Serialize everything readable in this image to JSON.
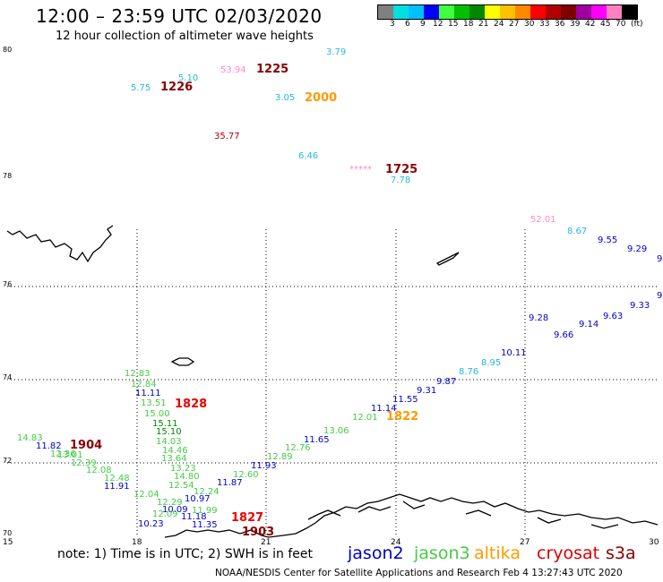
{
  "header": {
    "title": "12:00 – 23:59 UTC 02/03/2020",
    "subtitle": "12 hour collection of altimeter wave heights"
  },
  "colorbar": {
    "colors": [
      "#808080",
      "#00e0e0",
      "#00c0ff",
      "#0000ff",
      "#40ff40",
      "#00c000",
      "#008800",
      "#ffff00",
      "#ffc000",
      "#ff8800",
      "#ff0000",
      "#b00000",
      "#800000",
      "#a000a0",
      "#ff00ff",
      "#ff80c0",
      "#000000"
    ],
    "labels": [
      "3",
      "6",
      "9",
      "12",
      "15",
      "18",
      "21",
      "24",
      "27",
      "30",
      "33",
      "36",
      "39",
      "42",
      "45",
      "70",
      "(ft)"
    ]
  },
  "axes": {
    "y_ticks": [
      "80",
      "78",
      "76",
      "74",
      "72",
      "70"
    ],
    "x_ticks": [
      "15",
      "18",
      "21",
      "24",
      "27",
      "30"
    ]
  },
  "satellites": {
    "jason2": {
      "name": "jason2",
      "color": "#0000cc"
    },
    "jason3": {
      "name": "jason3",
      "color": "#44cc44"
    },
    "altika": {
      "name": "altika",
      "color": "#ff9900"
    },
    "cryosat": {
      "name": "cryosat",
      "color": "#dd0000"
    },
    "s3a": {
      "name": "s3a",
      "color": "#880000"
    }
  },
  "time_labels": [
    {
      "text": "1226",
      "color": "#880000"
    },
    {
      "text": "1225",
      "color": "#880000"
    },
    {
      "text": "2000",
      "color": "#ff9900"
    },
    {
      "text": "1725",
      "color": "#880000"
    },
    {
      "text": "1828",
      "color": "#ee0000"
    },
    {
      "text": "1904",
      "color": "#880000"
    },
    {
      "text": "1822",
      "color": "#ff9900"
    },
    {
      "text": "1827",
      "color": "#ee0000"
    },
    {
      "text": "1903",
      "color": "#880000"
    }
  ],
  "wave_labels": [
    {
      "text": "5.75",
      "color": "#22bbdd"
    },
    {
      "text": "5.10",
      "color": "#22bbdd"
    },
    {
      "text": "53.94",
      "color": "#ff88cc"
    },
    {
      "text": "3.79",
      "color": "#22bbdd"
    },
    {
      "text": "3.05",
      "color": "#22bbdd"
    },
    {
      "text": "35.77",
      "color": "#aa0000"
    },
    {
      "text": "6.46",
      "color": "#22bbdd"
    },
    {
      "text": "*****",
      "color": "#ff88cc"
    },
    {
      "text": "7.78",
      "color": "#22bbdd"
    },
    {
      "text": "52.01",
      "color": "#ff88cc"
    },
    {
      "text": "8.67",
      "color": "#22bbdd"
    },
    {
      "text": "9.55",
      "color": "#0000cc"
    },
    {
      "text": "9.29",
      "color": "#0000cc"
    },
    {
      "text": "9",
      "color": "#0000cc"
    },
    {
      "text": "9",
      "color": "#0000cc"
    },
    {
      "text": "9.33",
      "color": "#0000cc"
    },
    {
      "text": "9.63",
      "color": "#0000cc"
    },
    {
      "text": "9.66",
      "color": "#0000cc"
    },
    {
      "text": "9.14",
      "color": "#0000cc"
    },
    {
      "text": "9.28",
      "color": "#0000cc"
    },
    {
      "text": "10.11",
      "color": "#0000cc"
    },
    {
      "text": "8.95",
      "color": "#22bbdd"
    },
    {
      "text": "8.76",
      "color": "#22bbdd"
    },
    {
      "text": "9.87",
      "color": "#0000cc"
    },
    {
      "text": "9.31",
      "color": "#0000cc"
    },
    {
      "text": "11.55",
      "color": "#0000cc"
    },
    {
      "text": "11.14",
      "color": "#0000cc"
    },
    {
      "text": "12.01",
      "color": "#44cc44"
    },
    {
      "text": "13.06",
      "color": "#44cc44"
    },
    {
      "text": "11.65",
      "color": "#0000cc"
    },
    {
      "text": "12.76",
      "color": "#44cc44"
    },
    {
      "text": "12.89",
      "color": "#44cc44"
    },
    {
      "text": "11.93",
      "color": "#0000cc"
    },
    {
      "text": "12.60",
      "color": "#44cc44"
    },
    {
      "text": "11.87",
      "color": "#0000cc"
    },
    {
      "text": "12.83",
      "color": "#44cc44"
    },
    {
      "text": "12.84",
      "color": "#44cc44"
    },
    {
      "text": "11.11",
      "color": "#0000cc"
    },
    {
      "text": "13.51",
      "color": "#44cc44"
    },
    {
      "text": "15.00",
      "color": "#44cc44"
    },
    {
      "text": "15.11",
      "color": "#008800"
    },
    {
      "text": "15.10",
      "color": "#008800"
    },
    {
      "text": "14.03",
      "color": "#44cc44"
    },
    {
      "text": "14.46",
      "color": "#44cc44"
    },
    {
      "text": "13.64",
      "color": "#44cc44"
    },
    {
      "text": "13.23",
      "color": "#44cc44"
    },
    {
      "text": "14.80",
      "color": "#44cc44"
    },
    {
      "text": "12.54",
      "color": "#44cc44"
    },
    {
      "text": "12.24",
      "color": "#44cc44"
    },
    {
      "text": "10.97",
      "color": "#0000cc"
    },
    {
      "text": "11.99",
      "color": "#44cc44"
    },
    {
      "text": "11.18",
      "color": "#0000cc"
    },
    {
      "text": "11.35",
      "color": "#0000cc"
    },
    {
      "text": "12.29",
      "color": "#44cc44"
    },
    {
      "text": "10.09",
      "color": "#0000cc"
    },
    {
      "text": "12.09",
      "color": "#44cc44"
    },
    {
      "text": "12.04",
      "color": "#44cc44"
    },
    {
      "text": "11.91",
      "color": "#0000cc"
    },
    {
      "text": "12.48",
      "color": "#44cc44"
    },
    {
      "text": "12.08",
      "color": "#44cc44"
    },
    {
      "text": "12.39",
      "color": "#44cc44"
    },
    {
      "text": "13.01",
      "color": "#44cc44"
    },
    {
      "text": "14.83",
      "color": "#44cc44"
    },
    {
      "text": "11.82",
      "color": "#0000cc"
    },
    {
      "text": "12.36",
      "color": "#44cc44"
    },
    {
      "text": "10.23",
      "color": "#0000cc"
    }
  ],
  "note": "note: 1) Time is in UTC; 2) SWH is in feet",
  "footer": "NOAA/NESDIS Center for Satellite Applications and Research    Feb  4 13:27:43 UTC 2020"
}
